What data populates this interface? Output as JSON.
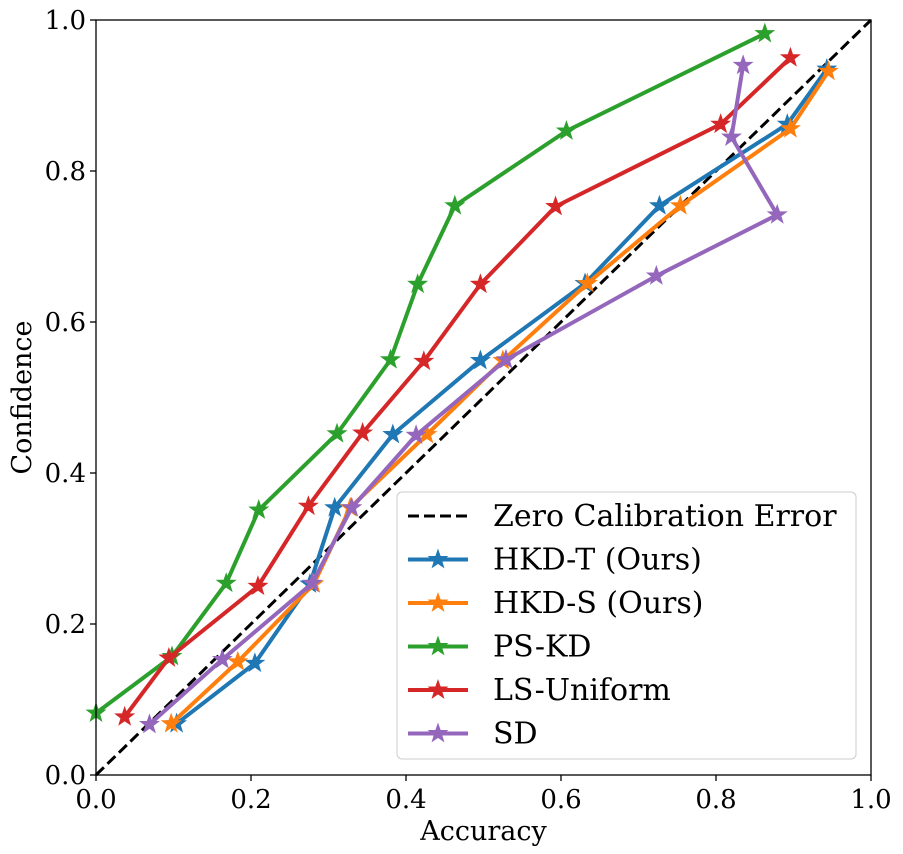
{
  "chart_data": {
    "type": "line",
    "title": "",
    "xlabel": "Accuracy",
    "ylabel": "Confidence",
    "xlim": [
      0.0,
      1.0
    ],
    "ylim": [
      0.0,
      1.0
    ],
    "x_ticks": [
      "0.0",
      "0.2",
      "0.4",
      "0.6",
      "0.8",
      "1.0"
    ],
    "y_ticks": [
      "0.0",
      "0.2",
      "0.4",
      "0.6",
      "0.8",
      "1.0"
    ],
    "grid": false,
    "legend_position": "lower-right",
    "reference_line": {
      "name": "Zero Calibration Error",
      "style": "dashed",
      "color": "#000000",
      "points": [
        [
          0.0,
          0.0
        ],
        [
          1.0,
          1.0
        ]
      ]
    },
    "series": [
      {
        "name": "HKD-T (Ours)",
        "color": "#1f77b4",
        "marker": "star",
        "points": [
          [
            0.104,
            0.068
          ],
          [
            0.205,
            0.148
          ],
          [
            0.276,
            0.253
          ],
          [
            0.308,
            0.354
          ],
          [
            0.383,
            0.451
          ],
          [
            0.496,
            0.549
          ],
          [
            0.631,
            0.651
          ],
          [
            0.727,
            0.754
          ],
          [
            0.892,
            0.862
          ],
          [
            0.943,
            0.935
          ]
        ]
      },
      {
        "name": "HKD-S (Ours)",
        "color": "#ff7f0e",
        "marker": "star",
        "points": [
          [
            0.097,
            0.068
          ],
          [
            0.183,
            0.15
          ],
          [
            0.281,
            0.253
          ],
          [
            0.328,
            0.354
          ],
          [
            0.427,
            0.451
          ],
          [
            0.525,
            0.549
          ],
          [
            0.634,
            0.651
          ],
          [
            0.754,
            0.754
          ],
          [
            0.896,
            0.856
          ],
          [
            0.945,
            0.932
          ]
        ]
      },
      {
        "name": "PS-KD",
        "color": "#2ca02c",
        "marker": "star",
        "points": [
          [
            0.0,
            0.082
          ],
          [
            0.098,
            0.157
          ],
          [
            0.168,
            0.254
          ],
          [
            0.21,
            0.351
          ],
          [
            0.311,
            0.452
          ],
          [
            0.38,
            0.55
          ],
          [
            0.415,
            0.65
          ],
          [
            0.463,
            0.754
          ],
          [
            0.607,
            0.853
          ],
          [
            0.863,
            0.982
          ]
        ]
      },
      {
        "name": "LS-Uniform",
        "color": "#d62728",
        "marker": "star",
        "points": [
          [
            0.037,
            0.077
          ],
          [
            0.094,
            0.155
          ],
          [
            0.209,
            0.25
          ],
          [
            0.274,
            0.356
          ],
          [
            0.344,
            0.453
          ],
          [
            0.423,
            0.548
          ],
          [
            0.496,
            0.65
          ],
          [
            0.593,
            0.753
          ],
          [
            0.806,
            0.862
          ],
          [
            0.896,
            0.95
          ]
        ]
      },
      {
        "name": "SD",
        "color": "#9467bd",
        "marker": "star",
        "points": [
          [
            0.069,
            0.067
          ],
          [
            0.163,
            0.153
          ],
          [
            0.279,
            0.254
          ],
          [
            0.33,
            0.354
          ],
          [
            0.413,
            0.45
          ],
          [
            0.529,
            0.55
          ],
          [
            0.723,
            0.661
          ],
          [
            0.879,
            0.742
          ],
          [
            0.82,
            0.845
          ],
          [
            0.835,
            0.94
          ]
        ]
      }
    ]
  }
}
